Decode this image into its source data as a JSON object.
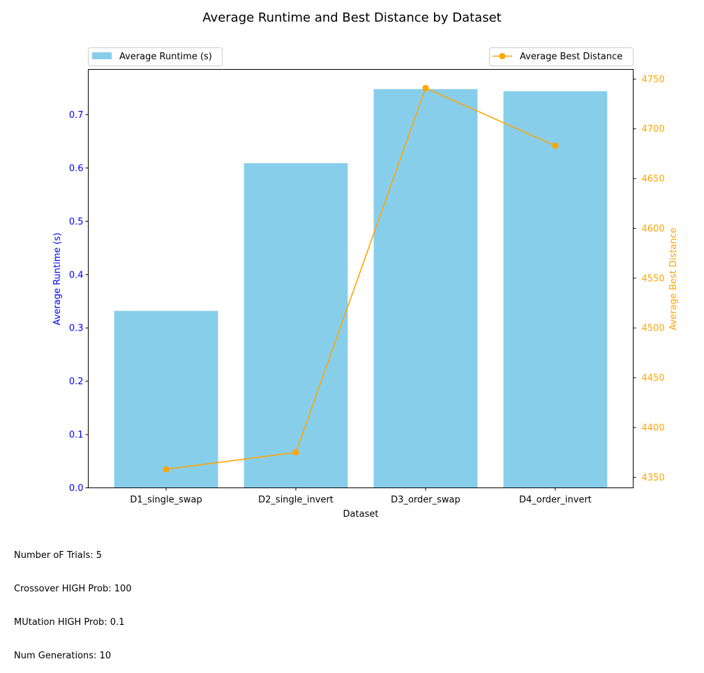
{
  "colors": {
    "bar": "#87ceeb",
    "line": "#ffa500",
    "left_axis": "#0000ff",
    "right_axis": "#ffa500",
    "text": "#000000"
  },
  "chart_data": {
    "type": "bar",
    "title": "Average Runtime and Best Distance by Dataset",
    "xlabel": "Dataset",
    "categories": [
      "D1_single_swap",
      "D2_single_invert",
      "D3_order_swap",
      "D4_order_invert"
    ],
    "series": [
      {
        "name": "Average Runtime (s)",
        "type": "bar",
        "axis": "left",
        "values": [
          0.332,
          0.609,
          0.748,
          0.744
        ]
      },
      {
        "name": "Average Best Distance",
        "type": "line",
        "axis": "right",
        "values": [
          4358,
          4375,
          4741,
          4683
        ]
      }
    ],
    "left_axis": {
      "label": "Average Runtime (s)",
      "ylim": [
        0,
        0.785
      ],
      "ticks": [
        0.0,
        0.1,
        0.2,
        0.3,
        0.4,
        0.5,
        0.6,
        0.7
      ],
      "tick_labels": [
        "0.0",
        "0.1",
        "0.2",
        "0.3",
        "0.4",
        "0.5",
        "0.6",
        "0.7"
      ]
    },
    "right_axis": {
      "label": "Average Best Distance",
      "ylim": [
        4339.4,
        4759.7
      ],
      "ticks": [
        4350,
        4400,
        4450,
        4500,
        4550,
        4600,
        4650,
        4700,
        4750
      ],
      "tick_labels": [
        "4350",
        "4400",
        "4450",
        "4500",
        "4550",
        "4600",
        "4650",
        "4700",
        "4750"
      ]
    },
    "legends": [
      {
        "entry": "Average Runtime (s)",
        "position": "top-left"
      },
      {
        "entry": "Average Best Distance",
        "position": "top-right"
      }
    ],
    "grid": false
  },
  "notes": [
    "Number oF Trials: 5",
    "Crossover HIGH Prob: 100",
    "MUtation HIGH Prob: 0.1",
    "Num Generations: 10"
  ]
}
